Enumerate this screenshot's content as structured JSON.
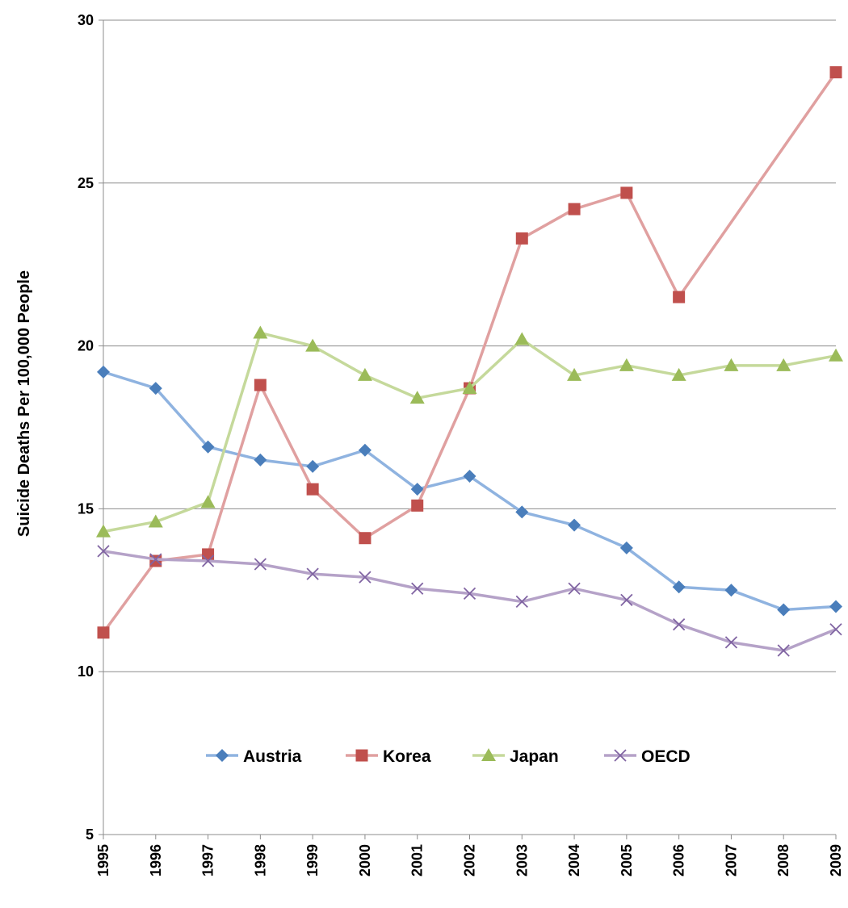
{
  "chart_data": {
    "type": "line",
    "title": "",
    "xlabel": "",
    "ylabel": "Suicide Deaths Per 100,000 People",
    "ylim": [
      5,
      30
    ],
    "yticks": [
      5,
      10,
      15,
      20,
      25,
      30
    ],
    "grid": true,
    "legend_position": "inside-bottom-center",
    "x": [
      "1995",
      "1996",
      "1997",
      "1998",
      "1999",
      "2000",
      "2001",
      "2002",
      "2003",
      "2004",
      "2005",
      "2006",
      "2007",
      "2008",
      "2009"
    ],
    "series": [
      {
        "name": "Austria",
        "marker": "diamond",
        "line_color": "#8fb3e0",
        "marker_color": "#4a7ebb",
        "values": [
          19.2,
          18.7,
          16.9,
          16.5,
          16.3,
          16.8,
          15.6,
          16.0,
          14.9,
          14.5,
          13.8,
          12.6,
          12.5,
          11.9,
          12.0
        ]
      },
      {
        "name": "Korea",
        "marker": "square",
        "line_color": "#e0a0a0",
        "marker_color": "#c0504d",
        "values": [
          11.2,
          13.4,
          13.6,
          18.8,
          15.6,
          14.1,
          15.1,
          18.7,
          23.3,
          24.2,
          24.7,
          21.5,
          null,
          null,
          28.4
        ]
      },
      {
        "name": "Japan",
        "marker": "triangle",
        "line_color": "#c5d99b",
        "marker_color": "#9bbb59",
        "values": [
          14.3,
          14.6,
          15.2,
          20.4,
          20.0,
          19.1,
          18.4,
          18.7,
          20.2,
          19.1,
          19.4,
          19.1,
          19.4,
          19.4,
          19.7
        ]
      },
      {
        "name": "OECD",
        "marker": "x",
        "line_color": "#b5a2c8",
        "marker_color": "#8064a2",
        "values": [
          13.7,
          13.45,
          13.4,
          13.3,
          13.0,
          12.9,
          12.55,
          12.4,
          12.15,
          12.55,
          12.2,
          11.45,
          10.9,
          10.65,
          11.3
        ]
      }
    ]
  }
}
